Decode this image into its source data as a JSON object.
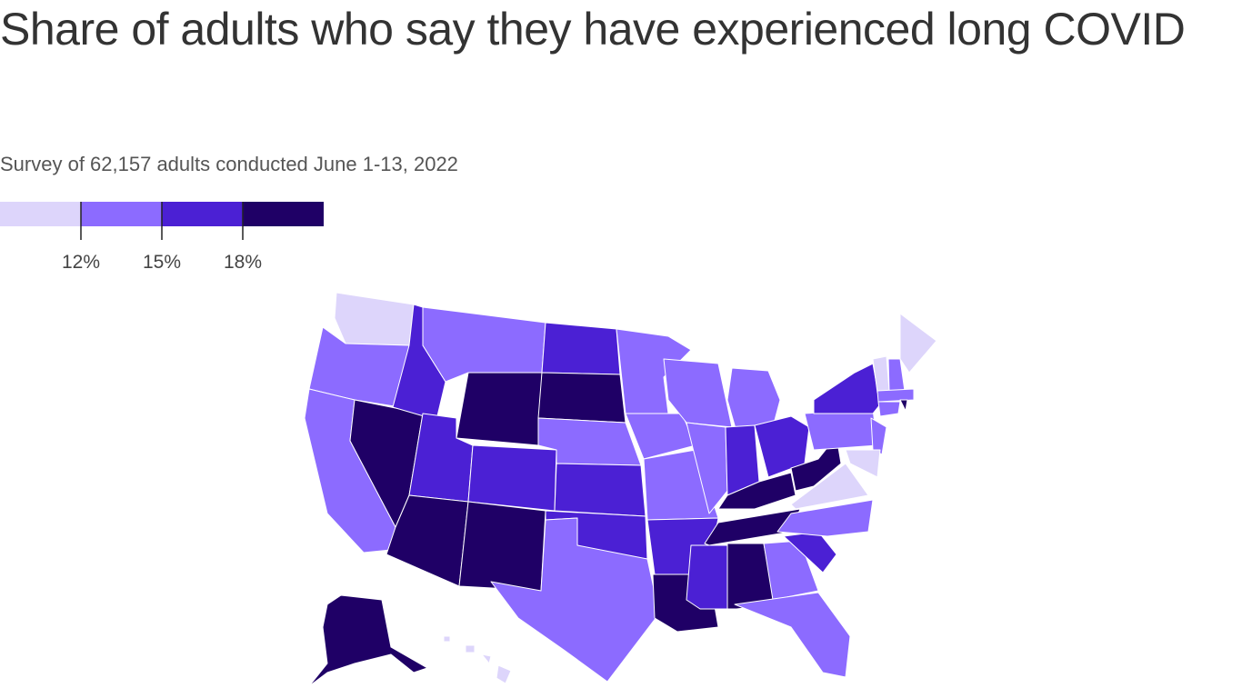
{
  "header": {
    "title": "Share of adults who say they have experienced long COVID",
    "subtitle": "Survey of 62,157 adults conducted June 1-13, 2022"
  },
  "legend": {
    "colors": [
      "#ddd5fb",
      "#8c6bff",
      "#4b20d4",
      "#1f0066"
    ],
    "ticks": [
      {
        "value": 12,
        "label": "12%"
      },
      {
        "value": 15,
        "label": "15%"
      },
      {
        "value": 18,
        "label": "18%"
      }
    ]
  }
}
